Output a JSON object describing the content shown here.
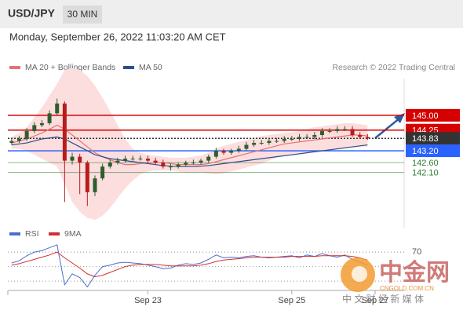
{
  "header": {
    "symbol": "USD/JPY",
    "interval": "30 MIN",
    "timestamp": "Monday, September 26, 2022 11:03:20 AM CET"
  },
  "source": "Research © 2022 Trading Central",
  "watermark": {
    "name": "中金网",
    "site": "CNGOLD.COM.CN",
    "slogan": "中 文 财 经 新 媒 体"
  },
  "chart_data": [
    {
      "type": "candlestick",
      "x": [
        0,
        1,
        2,
        3,
        4,
        5,
        6,
        7,
        8,
        9,
        10,
        11,
        12,
        13,
        14,
        15,
        16,
        17,
        18,
        19,
        20,
        21,
        22,
        23,
        24,
        25,
        26,
        27,
        28,
        29,
        30,
        31,
        32,
        33,
        34,
        35,
        36,
        37,
        38,
        39,
        40,
        41,
        42,
        43,
        44,
        45,
        46,
        47
      ],
      "xlim": [
        -0.5,
        48
      ],
      "ylim": [
        139.5,
        146.15
      ],
      "up_color": "#2e5e2e",
      "down_color": "#b71c1c",
      "open": [
        143.6,
        143.7,
        143.8,
        144.2,
        144.5,
        144.6,
        145.1,
        145.6,
        142.7,
        142.9,
        142.6,
        141.1,
        141.8,
        142.4,
        142.6,
        142.7,
        142.8,
        142.8,
        142.8,
        142.7,
        142.6,
        142.4,
        142.4,
        142.5,
        142.6,
        142.6,
        142.7,
        142.9,
        143.2,
        143.1,
        143.2,
        143.3,
        143.5,
        143.6,
        143.6,
        143.7,
        143.7,
        143.8,
        143.8,
        143.9,
        143.9,
        144.0,
        144.2,
        144.2,
        144.3,
        144.3,
        144.0,
        143.9
      ],
      "high": [
        143.85,
        143.95,
        144.35,
        144.65,
        144.75,
        145.25,
        145.85,
        145.7,
        143.1,
        143.05,
        142.7,
        141.95,
        142.55,
        142.75,
        142.85,
        142.95,
        142.95,
        142.95,
        142.95,
        142.85,
        142.75,
        142.55,
        142.6,
        142.7,
        142.75,
        142.8,
        143.0,
        143.35,
        143.3,
        143.3,
        143.45,
        143.65,
        143.75,
        143.75,
        143.85,
        143.85,
        143.95,
        143.95,
        144.05,
        144.05,
        144.15,
        144.35,
        144.35,
        144.45,
        144.45,
        144.45,
        144.15,
        144.05
      ],
      "low": [
        143.5,
        143.6,
        143.7,
        144.1,
        144.4,
        144.5,
        145.0,
        140.6,
        142.5,
        141.0,
        140.4,
        140.9,
        141.7,
        142.3,
        142.5,
        142.6,
        142.7,
        142.7,
        142.6,
        142.5,
        142.3,
        142.2,
        142.3,
        142.4,
        142.5,
        142.5,
        142.6,
        142.8,
        143.0,
        143.0,
        143.1,
        143.2,
        143.4,
        143.5,
        143.5,
        143.6,
        143.6,
        143.7,
        143.7,
        143.8,
        143.8,
        143.9,
        144.1,
        144.1,
        144.2,
        143.9,
        143.8,
        143.75
      ],
      "close": [
        143.7,
        143.8,
        144.2,
        144.5,
        144.6,
        145.1,
        145.6,
        142.7,
        142.9,
        142.6,
        141.1,
        141.8,
        142.4,
        142.6,
        142.7,
        142.8,
        142.8,
        142.8,
        142.7,
        142.6,
        142.4,
        142.4,
        142.5,
        142.6,
        142.6,
        142.7,
        142.9,
        143.2,
        143.1,
        143.2,
        143.3,
        143.5,
        143.6,
        143.6,
        143.7,
        143.7,
        143.8,
        143.8,
        143.9,
        143.9,
        144.0,
        144.2,
        144.2,
        144.3,
        144.3,
        144.0,
        143.9,
        143.83
      ],
      "series": [
        {
          "name": "MA 20 + Bollinger Bands",
          "color": "#e57373",
          "band_color": "#fcdede",
          "values": [
            143.6,
            143.7,
            143.8,
            143.95,
            144.1,
            144.3,
            144.5,
            144.3,
            144.0,
            143.7,
            143.4,
            143.1,
            142.9,
            142.75,
            142.6,
            142.5,
            142.5,
            142.55,
            142.6,
            142.6,
            142.6,
            142.55,
            142.5,
            142.5,
            142.5,
            142.5,
            142.55,
            142.65,
            142.75,
            142.85,
            142.95,
            143.05,
            143.15,
            143.25,
            143.35,
            143.45,
            143.55,
            143.6,
            143.65,
            143.7,
            143.75,
            143.8,
            143.85,
            143.9,
            143.95,
            144.0,
            144.0,
            143.95
          ],
          "upper": [
            143.9,
            144.1,
            144.4,
            144.9,
            145.4,
            146.0,
            146.6,
            147.3,
            147.4,
            147.3,
            147.0,
            146.5,
            145.9,
            145.2,
            144.5,
            143.8,
            143.3,
            143.1,
            143.0,
            142.95,
            142.9,
            142.85,
            142.85,
            142.85,
            142.9,
            142.95,
            143.1,
            143.3,
            143.45,
            143.55,
            143.65,
            143.75,
            143.85,
            143.95,
            144.0,
            144.05,
            144.1,
            144.15,
            144.2,
            144.3,
            144.4,
            144.45,
            144.5,
            144.55,
            144.6,
            144.6,
            144.55,
            144.5
          ],
          "lower": [
            143.3,
            143.3,
            143.2,
            143.0,
            142.8,
            142.6,
            142.4,
            141.5,
            140.6,
            140.1,
            139.8,
            139.7,
            139.9,
            140.3,
            140.8,
            141.3,
            141.7,
            142.0,
            142.15,
            142.2,
            142.2,
            142.2,
            142.15,
            142.1,
            142.1,
            142.1,
            142.05,
            142.0,
            142.05,
            142.15,
            142.25,
            142.35,
            142.45,
            142.55,
            142.7,
            142.85,
            143.0,
            143.05,
            143.1,
            143.1,
            143.1,
            143.15,
            143.2,
            143.25,
            143.3,
            143.35,
            143.4,
            143.4
          ]
        },
        {
          "name": "MA 50",
          "color": "#2c4f8c",
          "values": [
            143.5,
            143.55,
            143.6,
            143.7,
            143.8,
            143.85,
            143.9,
            143.8,
            143.6,
            143.4,
            143.2,
            143.0,
            142.9,
            142.8,
            142.75,
            142.7,
            142.65,
            142.6,
            142.55,
            142.5,
            142.45,
            142.42,
            142.4,
            142.4,
            142.4,
            142.42,
            142.45,
            142.5,
            142.55,
            142.6,
            142.65,
            142.7,
            142.75,
            142.8,
            142.85,
            142.9,
            142.95,
            143.0,
            143.05,
            143.1,
            143.15,
            143.2,
            143.25,
            143.3,
            143.35,
            143.4,
            143.45,
            143.5
          ]
        }
      ],
      "levels": [
        {
          "value": 145,
          "label": "145.00",
          "color": "#d50000",
          "style": "box"
        },
        {
          "value": 144.25,
          "label": "144.25",
          "color": "#d50000",
          "style": "box"
        },
        {
          "value": 143.83,
          "label": "143.83",
          "color": "#333333",
          "style": "current"
        },
        {
          "value": 143.2,
          "label": "143.20",
          "color": "#2962ff",
          "style": "box"
        },
        {
          "value": 142.6,
          "label": "142.60",
          "color": "#2e7d32",
          "style": "text"
        },
        {
          "value": 142.1,
          "label": "142.10",
          "color": "#2e7d32",
          "style": "text"
        }
      ]
    },
    {
      "type": "line",
      "x": [
        0,
        1,
        2,
        3,
        4,
        5,
        6,
        7,
        8,
        9,
        10,
        11,
        12,
        13,
        14,
        15,
        16,
        17,
        18,
        19,
        20,
        21,
        22,
        23,
        24,
        25,
        26,
        27,
        28,
        29,
        30,
        31,
        32,
        33,
        34,
        35,
        36,
        37,
        38,
        39,
        40,
        41,
        42,
        43,
        44,
        45,
        46,
        47
      ],
      "xlim": [
        -0.5,
        48
      ],
      "xticks": [
        {
          "value": 18,
          "label": "Sep 23"
        },
        {
          "value": 37,
          "label": "Sep 25"
        },
        {
          "value": 48,
          "label": "Sep 27"
        }
      ],
      "ylim": [
        15,
        95
      ],
      "yticks": [
        70
      ],
      "guides": [
        50,
        30
      ],
      "series": [
        {
          "name": "RSI",
          "color": "#4a6fd1",
          "values": [
            55,
            58,
            65,
            70,
            72,
            76,
            80,
            25,
            40,
            35,
            22,
            38,
            50,
            52,
            55,
            56,
            55,
            54,
            52,
            50,
            47,
            48,
            52,
            54,
            53,
            55,
            60,
            66,
            62,
            63,
            62,
            64,
            65,
            63,
            62,
            63,
            64,
            65,
            62,
            66,
            64,
            68,
            65,
            63,
            66,
            60,
            56,
            52
          ]
        },
        {
          "name": "9MA",
          "color": "#d32f2f",
          "values": [
            52,
            54,
            57,
            60,
            63,
            66,
            70,
            62,
            55,
            48,
            40,
            36,
            38,
            42,
            46,
            50,
            52,
            53,
            53,
            53,
            52,
            51,
            51,
            51,
            51,
            52,
            54,
            57,
            59,
            60,
            61,
            62,
            63,
            63,
            63,
            63,
            63,
            64,
            64,
            64,
            64,
            65,
            65,
            65,
            65,
            64,
            62,
            59
          ]
        }
      ]
    }
  ]
}
